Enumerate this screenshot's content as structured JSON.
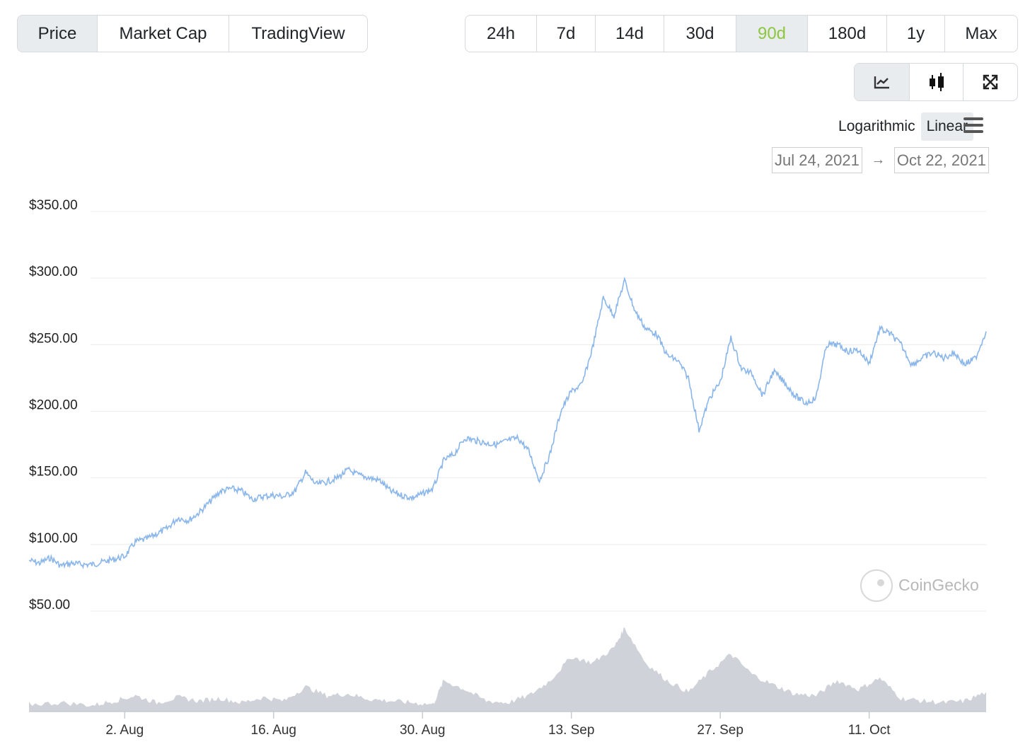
{
  "type_tabs": [
    {
      "label": "Price",
      "active": true
    },
    {
      "label": "Market Cap",
      "active": false
    },
    {
      "label": "TradingView",
      "active": false
    }
  ],
  "range_tabs": [
    {
      "label": "24h",
      "active": false
    },
    {
      "label": "7d",
      "active": false
    },
    {
      "label": "14d",
      "active": false
    },
    {
      "label": "30d",
      "active": false
    },
    {
      "label": "90d",
      "active": true
    },
    {
      "label": "180d",
      "active": false
    },
    {
      "label": "1y",
      "active": false
    },
    {
      "label": "Max",
      "active": false
    }
  ],
  "chart_modes": [
    {
      "icon": "line-chart-icon",
      "active": true
    },
    {
      "icon": "candlestick-icon",
      "active": false
    },
    {
      "icon": "expand-icon",
      "active": false
    }
  ],
  "scale": {
    "log_label": "Logarithmic",
    "linear_label": "Linear",
    "active": "Linear"
  },
  "date_range": {
    "from": "Jul 24, 2021",
    "to": "Oct 22, 2021"
  },
  "watermark": "CoinGecko",
  "colors": {
    "line": "#8ab6ea",
    "volume": "#cfd3d9",
    "active_range": "#8dc63f",
    "grid": "#ececec"
  },
  "chart_data": {
    "type": "line",
    "y_ticks": [
      "$350.00",
      "$300.00",
      "$250.00",
      "$200.00",
      "$150.00",
      "$100.00",
      "$50.00"
    ],
    "y_values": [
      350,
      300,
      250,
      200,
      150,
      100,
      50
    ],
    "ylim": [
      50,
      350
    ],
    "x_ticks": [
      {
        "label": "2. Aug",
        "date": "2021-08-02"
      },
      {
        "label": "16. Aug",
        "date": "2021-08-16"
      },
      {
        "label": "30. Aug",
        "date": "2021-08-30"
      },
      {
        "label": "13. Sep",
        "date": "2021-09-13"
      },
      {
        "label": "27. Sep",
        "date": "2021-09-27"
      },
      {
        "label": "11. Oct",
        "date": "2021-10-11"
      }
    ],
    "xlim": [
      "2021-07-24",
      "2021-10-22"
    ],
    "price_series": [
      [
        "2021-07-24",
        88
      ],
      [
        "2021-07-25",
        86
      ],
      [
        "2021-07-26",
        90
      ],
      [
        "2021-07-27",
        84
      ],
      [
        "2021-07-28",
        86
      ],
      [
        "2021-07-29",
        85
      ],
      [
        "2021-07-30",
        85
      ],
      [
        "2021-07-31",
        87
      ],
      [
        "2021-08-01",
        89
      ],
      [
        "2021-08-02",
        91
      ],
      [
        "2021-08-03",
        102
      ],
      [
        "2021-08-04",
        104
      ],
      [
        "2021-08-05",
        108
      ],
      [
        "2021-08-06",
        112
      ],
      [
        "2021-08-07",
        120
      ],
      [
        "2021-08-08",
        118
      ],
      [
        "2021-08-09",
        124
      ],
      [
        "2021-08-10",
        132
      ],
      [
        "2021-08-11",
        140
      ],
      [
        "2021-08-12",
        142
      ],
      [
        "2021-08-13",
        140
      ],
      [
        "2021-08-14",
        134
      ],
      [
        "2021-08-15",
        136
      ],
      [
        "2021-08-16",
        137
      ],
      [
        "2021-08-17",
        136
      ],
      [
        "2021-08-18",
        140
      ],
      [
        "2021-08-19",
        154
      ],
      [
        "2021-08-20",
        145
      ],
      [
        "2021-08-21",
        147
      ],
      [
        "2021-08-22",
        150
      ],
      [
        "2021-08-23",
        156
      ],
      [
        "2021-08-24",
        152
      ],
      [
        "2021-08-25",
        150
      ],
      [
        "2021-08-26",
        148
      ],
      [
        "2021-08-27",
        140
      ],
      [
        "2021-08-28",
        137
      ],
      [
        "2021-08-29",
        135
      ],
      [
        "2021-08-30",
        138
      ],
      [
        "2021-08-31",
        142
      ],
      [
        "2021-09-01",
        163
      ],
      [
        "2021-09-02",
        168
      ],
      [
        "2021-09-03",
        180
      ],
      [
        "2021-09-04",
        178
      ],
      [
        "2021-09-05",
        176
      ],
      [
        "2021-09-06",
        175
      ],
      [
        "2021-09-07",
        178
      ],
      [
        "2021-09-08",
        180
      ],
      [
        "2021-09-09",
        170
      ],
      [
        "2021-09-10",
        148
      ],
      [
        "2021-09-11",
        168
      ],
      [
        "2021-09-12",
        200
      ],
      [
        "2021-09-13",
        215
      ],
      [
        "2021-09-14",
        220
      ],
      [
        "2021-09-15",
        248
      ],
      [
        "2021-09-16",
        285
      ],
      [
        "2021-09-17",
        272
      ],
      [
        "2021-09-18",
        298
      ],
      [
        "2021-09-19",
        275
      ],
      [
        "2021-09-20",
        262
      ],
      [
        "2021-09-21",
        258
      ],
      [
        "2021-09-22",
        242
      ],
      [
        "2021-09-23",
        238
      ],
      [
        "2021-09-24",
        225
      ],
      [
        "2021-09-25",
        186
      ],
      [
        "2021-09-26",
        210
      ],
      [
        "2021-09-27",
        222
      ],
      [
        "2021-09-28",
        255
      ],
      [
        "2021-09-29",
        232
      ],
      [
        "2021-09-30",
        228
      ],
      [
        "2021-10-01",
        212
      ],
      [
        "2021-10-02",
        230
      ],
      [
        "2021-10-03",
        222
      ],
      [
        "2021-10-04",
        212
      ],
      [
        "2021-10-05",
        206
      ],
      [
        "2021-10-06",
        210
      ],
      [
        "2021-10-07",
        250
      ],
      [
        "2021-10-08",
        250
      ],
      [
        "2021-10-09",
        245
      ],
      [
        "2021-10-10",
        246
      ],
      [
        "2021-10-11",
        236
      ],
      [
        "2021-10-12",
        262
      ],
      [
        "2021-10-13",
        258
      ],
      [
        "2021-10-14",
        250
      ],
      [
        "2021-10-15",
        235
      ],
      [
        "2021-10-16",
        240
      ],
      [
        "2021-10-17",
        244
      ],
      [
        "2021-10-18",
        240
      ],
      [
        "2021-10-19",
        244
      ],
      [
        "2021-10-20",
        235
      ],
      [
        "2021-10-21",
        240
      ],
      [
        "2021-10-22",
        260
      ]
    ],
    "volume_series": [
      [
        "2021-07-24",
        0.08
      ],
      [
        "2021-07-27",
        0.1
      ],
      [
        "2021-07-30",
        0.07
      ],
      [
        "2021-08-01",
        0.12
      ],
      [
        "2021-08-03",
        0.18
      ],
      [
        "2021-08-05",
        0.1
      ],
      [
        "2021-08-07",
        0.16
      ],
      [
        "2021-08-09",
        0.12
      ],
      [
        "2021-08-11",
        0.15
      ],
      [
        "2021-08-13",
        0.1
      ],
      [
        "2021-08-15",
        0.16
      ],
      [
        "2021-08-17",
        0.12
      ],
      [
        "2021-08-19",
        0.28
      ],
      [
        "2021-08-21",
        0.18
      ],
      [
        "2021-08-23",
        0.2
      ],
      [
        "2021-08-25",
        0.14
      ],
      [
        "2021-08-27",
        0.12
      ],
      [
        "2021-08-29",
        0.1
      ],
      [
        "2021-08-31",
        0.08
      ],
      [
        "2021-09-01",
        0.35
      ],
      [
        "2021-09-03",
        0.25
      ],
      [
        "2021-09-05",
        0.12
      ],
      [
        "2021-09-07",
        0.1
      ],
      [
        "2021-09-09",
        0.18
      ],
      [
        "2021-09-11",
        0.35
      ],
      [
        "2021-09-13",
        0.62
      ],
      [
        "2021-09-15",
        0.55
      ],
      [
        "2021-09-17",
        0.72
      ],
      [
        "2021-09-18",
        0.95
      ],
      [
        "2021-09-20",
        0.55
      ],
      [
        "2021-09-22",
        0.35
      ],
      [
        "2021-09-24",
        0.22
      ],
      [
        "2021-09-26",
        0.45
      ],
      [
        "2021-09-28",
        0.65
      ],
      [
        "2021-09-30",
        0.42
      ],
      [
        "2021-10-02",
        0.3
      ],
      [
        "2021-10-04",
        0.2
      ],
      [
        "2021-10-06",
        0.18
      ],
      [
        "2021-10-08",
        0.35
      ],
      [
        "2021-10-10",
        0.25
      ],
      [
        "2021-10-12",
        0.38
      ],
      [
        "2021-10-14",
        0.15
      ],
      [
        "2021-10-16",
        0.12
      ],
      [
        "2021-10-18",
        0.1
      ],
      [
        "2021-10-20",
        0.12
      ],
      [
        "2021-10-22",
        0.22
      ]
    ]
  }
}
